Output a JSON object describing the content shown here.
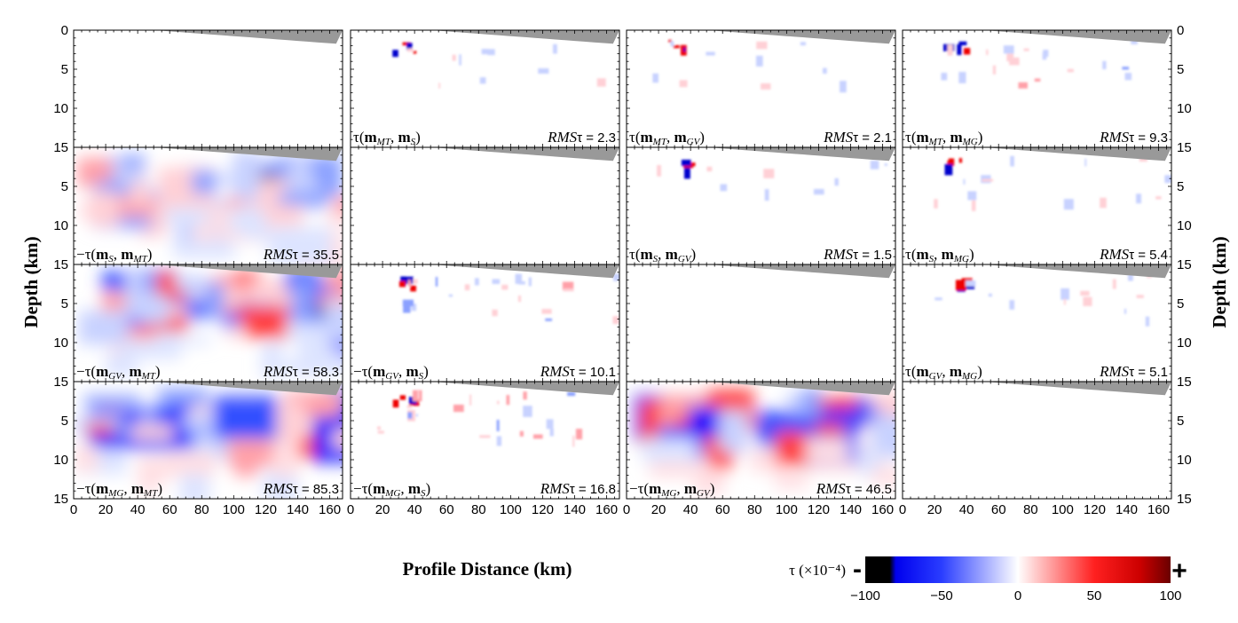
{
  "chart_data": {
    "type": "heatmap",
    "xlabel": "Profile Distance (km)",
    "ylabel": "Depth (km)",
    "xlim": [
      0,
      168
    ],
    "ylim": [
      15,
      0
    ],
    "x_ticks": [
      "0",
      "20",
      "40",
      "60",
      "80",
      "100",
      "120",
      "140",
      "160"
    ],
    "y_ticks_first": [
      "0",
      "5",
      "10",
      "15"
    ],
    "y_ticks_other": [
      "5",
      "10",
      "15"
    ],
    "colorbar": {
      "label": "τ (×10⁻⁴)",
      "min": -100,
      "max": 100,
      "ticks": [
        "−100",
        "−50",
        "0",
        "50",
        "100"
      ],
      "minus_symbol": "-",
      "plus_symbol": "+",
      "colors": [
        "#000000",
        "#0000ff",
        "#ffffff",
        "#ff0000",
        "#7a0000"
      ]
    },
    "panels": [
      {
        "row": 0,
        "col": 0,
        "label": "",
        "rms": "",
        "intensity": 0,
        "sign": 1
      },
      {
        "row": 0,
        "col": 1,
        "label": "τ(m_MT, m_S)",
        "rms": "RMSτ = 2.3",
        "intensity": 0.1,
        "sign": 1
      },
      {
        "row": 0,
        "col": 2,
        "label": "τ(m_MT, m_GV)",
        "rms": "RMSτ = 2.1",
        "intensity": 0.1,
        "sign": 1
      },
      {
        "row": 0,
        "col": 3,
        "label": "τ(m_MT, m_MG)",
        "rms": "RMSτ = 9.3",
        "intensity": 0.3,
        "sign": 1
      },
      {
        "row": 1,
        "col": 0,
        "label": "−τ(m_S, m_MT)",
        "rms": "RMSτ = 35.5",
        "intensity": 0.6,
        "sign": -1
      },
      {
        "row": 1,
        "col": 1,
        "label": "",
        "rms": "",
        "intensity": 0,
        "sign": 1
      },
      {
        "row": 1,
        "col": 2,
        "label": "τ(m_S, m_GV)",
        "rms": "RMSτ = 1.5",
        "intensity": 0.08,
        "sign": 1
      },
      {
        "row": 1,
        "col": 3,
        "label": "τ(m_S, m_MG)",
        "rms": "RMSτ = 5.4",
        "intensity": 0.2,
        "sign": 1
      },
      {
        "row": 2,
        "col": 0,
        "label": "−τ(m_GV, m_MT)",
        "rms": "RMSτ = 58.3",
        "intensity": 0.85,
        "sign": 1
      },
      {
        "row": 2,
        "col": 1,
        "label": "−τ(m_GV, m_S)",
        "rms": "RMSτ = 10.1",
        "intensity": 0.4,
        "sign": 1
      },
      {
        "row": 2,
        "col": 2,
        "label": "",
        "rms": "",
        "intensity": 0,
        "sign": 1
      },
      {
        "row": 2,
        "col": 3,
        "label": "τ(m_GV, m_MG)",
        "rms": "RMSτ = 5.1",
        "intensity": 0.2,
        "sign": 1
      },
      {
        "row": 3,
        "col": 0,
        "label": "−τ(m_MG, m_MT)",
        "rms": "RMSτ = 85.3",
        "intensity": 0.85,
        "sign": -1
      },
      {
        "row": 3,
        "col": 1,
        "label": "−τ(m_MG, m_S)",
        "rms": "RMSτ = 16.8",
        "intensity": 0.45,
        "sign": 1
      },
      {
        "row": 3,
        "col": 2,
        "label": "−τ(m_MG, m_GV)",
        "rms": "RMSτ = 46.5",
        "intensity": 0.8,
        "sign": -1
      },
      {
        "row": 3,
        "col": 3,
        "label": "",
        "rms": "",
        "intensity": 0,
        "sign": 1
      }
    ]
  }
}
